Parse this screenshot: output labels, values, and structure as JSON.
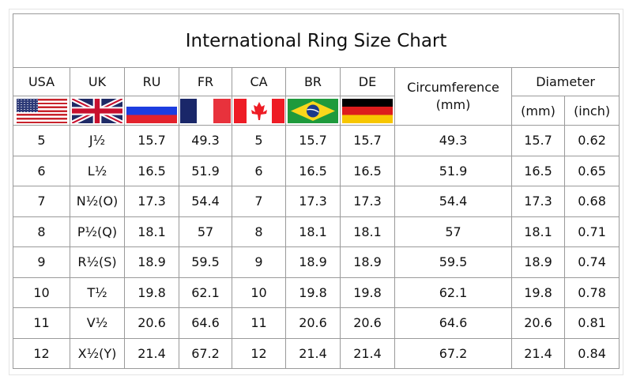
{
  "chart_data": {
    "type": "table",
    "title": "International Ring Size Chart",
    "columns": [
      "USA",
      "UK",
      "RU",
      "FR",
      "CA",
      "BR",
      "DE",
      "Circumference (mm)",
      "Diameter (mm)",
      "Diameter (inch)"
    ],
    "header": {
      "countries": [
        "USA",
        "UK",
        "RU",
        "FR",
        "CA",
        "BR",
        "DE"
      ],
      "circumference": "Circumference",
      "circumference_unit": "(mm)",
      "diameter": "Diameter",
      "diameter_mm": "(mm)",
      "diameter_inch": "(inch)"
    },
    "flags": [
      "us-flag",
      "uk-flag",
      "russia-flag",
      "france-flag",
      "canada-flag",
      "brazil-flag",
      "germany-flag"
    ],
    "rows": [
      [
        "5",
        "J½",
        "15.7",
        "49.3",
        "5",
        "15.7",
        "15.7",
        "49.3",
        "15.7",
        "0.62"
      ],
      [
        "6",
        "L½",
        "16.5",
        "51.9",
        "6",
        "16.5",
        "16.5",
        "51.9",
        "16.5",
        "0.65"
      ],
      [
        "7",
        "N½(O)",
        "17.3",
        "54.4",
        "7",
        "17.3",
        "17.3",
        "54.4",
        "17.3",
        "0.68"
      ],
      [
        "8",
        "P½(Q)",
        "18.1",
        "57",
        "8",
        "18.1",
        "18.1",
        "57",
        "18.1",
        "0.71"
      ],
      [
        "9",
        "R½(S)",
        "18.9",
        "59.5",
        "9",
        "18.9",
        "18.9",
        "59.5",
        "18.9",
        "0.74"
      ],
      [
        "10",
        "T½",
        "19.8",
        "62.1",
        "10",
        "19.8",
        "19.8",
        "62.1",
        "19.8",
        "0.78"
      ],
      [
        "11",
        "V½",
        "20.6",
        "64.6",
        "11",
        "20.6",
        "20.6",
        "64.6",
        "20.6",
        "0.81"
      ],
      [
        "12",
        "X½(Y)",
        "21.4",
        "67.2",
        "12",
        "21.4",
        "21.4",
        "67.2",
        "21.4",
        "0.84"
      ]
    ]
  }
}
